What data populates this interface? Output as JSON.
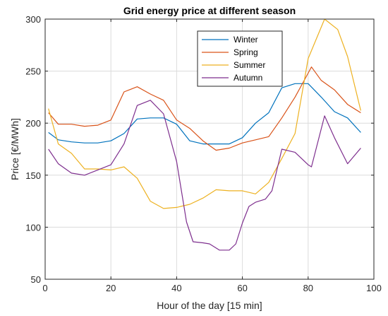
{
  "chart_data": {
    "type": "line",
    "title": "Grid energy price at different season",
    "xlabel": "Hour of the day [15 min]",
    "ylabel": "Price [€/MWh]",
    "xlim": [
      0,
      100
    ],
    "ylim": [
      50,
      300
    ],
    "xticks": [
      0,
      20,
      40,
      60,
      80,
      100
    ],
    "yticks": [
      50,
      100,
      150,
      200,
      250,
      300
    ],
    "grid": true,
    "legend_position": "top-center",
    "series": [
      {
        "name": "Winter",
        "color": "#0072BD",
        "x": [
          1,
          4,
          8,
          12,
          16,
          20,
          24,
          28,
          32,
          36,
          40,
          44,
          48,
          52,
          56,
          60,
          64,
          68,
          72,
          76,
          80,
          84,
          88,
          92,
          96
        ],
        "y": [
          191,
          184,
          182,
          181,
          181,
          183,
          190,
          204,
          205,
          205,
          199,
          183,
          180,
          180,
          180,
          186,
          200,
          210,
          234,
          238,
          238,
          225,
          211,
          205,
          191
        ]
      },
      {
        "name": "Spring",
        "color": "#D95319",
        "x": [
          1,
          4,
          8,
          12,
          16,
          20,
          24,
          28,
          32,
          36,
          40,
          44,
          48,
          52,
          56,
          60,
          64,
          68,
          72,
          76,
          80,
          81,
          84,
          88,
          92,
          96
        ],
        "y": [
          210,
          199,
          199,
          197,
          198,
          203,
          230,
          235,
          228,
          222,
          203,
          195,
          183,
          174,
          176,
          181,
          184,
          187,
          205,
          225,
          248,
          254,
          241,
          232,
          218,
          210
        ]
      },
      {
        "name": "Summer",
        "color": "#EDB120",
        "x": [
          1,
          4,
          8,
          12,
          16,
          20,
          24,
          28,
          32,
          36,
          40,
          44,
          48,
          52,
          56,
          60,
          64,
          68,
          72,
          76,
          80,
          85,
          89,
          92,
          96
        ],
        "y": [
          214,
          180,
          171,
          156,
          156,
          155,
          158,
          147,
          125,
          118,
          119,
          122,
          128,
          136,
          135,
          135,
          132,
          143,
          166,
          190,
          262,
          300,
          290,
          264,
          212
        ]
      },
      {
        "name": "Autumn",
        "color": "#7E2F8E",
        "x": [
          1,
          4,
          8,
          12,
          16,
          20,
          24,
          28,
          32,
          36,
          40,
          43,
          45,
          48,
          50,
          53,
          56,
          58,
          60,
          62,
          64,
          67,
          69,
          72,
          76,
          80,
          81,
          85,
          88,
          92,
          96
        ],
        "y": [
          175,
          161,
          152,
          150,
          155,
          160,
          180,
          217,
          222,
          209,
          163,
          105,
          86,
          85,
          84,
          78,
          78,
          84,
          104,
          120,
          124,
          127,
          135,
          175,
          172,
          160,
          158,
          207,
          186,
          161,
          176
        ]
      }
    ]
  }
}
